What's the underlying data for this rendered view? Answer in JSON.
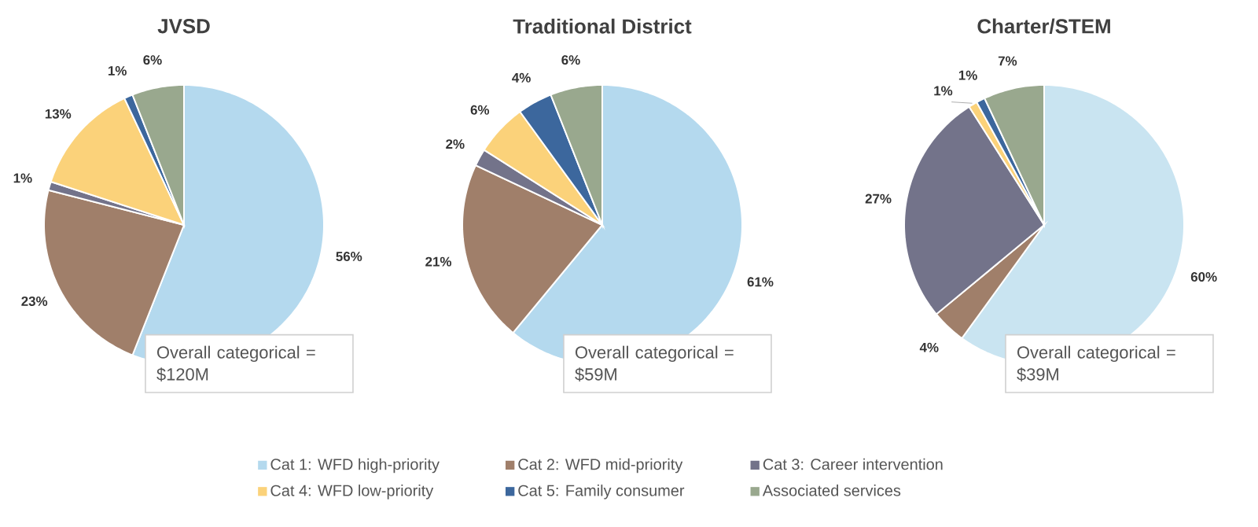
{
  "chart_data": [
    {
      "type": "pie",
      "title": "JVSD",
      "categories": [
        null,
        null,
        null,
        null,
        null,
        null
      ],
      "values": [
        56,
        23,
        1,
        13,
        1,
        6
      ],
      "value_labels": [
        "56%",
        "23%",
        "1%",
        "13%",
        "1%",
        "6%"
      ],
      "colors": [
        "#b4d9ee",
        "#a07f6a",
        "#73738a",
        "#fbd27a",
        "#3c679d",
        "#99a88e"
      ],
      "annotations": [
        "Overall categorical = $120M"
      ]
    },
    {
      "type": "pie",
      "title": "Traditional District",
      "categories": [
        "Cat 1: WFD high-priority",
        "Cat 2: WFD mid-priority",
        "Cat 3: Career intervention",
        "Cat 4: WFD low-priority",
        "Cat 5: Family consumer",
        "Associated services"
      ],
      "values": [
        61,
        21,
        2,
        6,
        4,
        6
      ],
      "value_labels": [
        "61%",
        "21%",
        "2%",
        "6%",
        "4%",
        "6%"
      ],
      "colors": [
        "#b4d9ee",
        "#a07f6a",
        "#73738a",
        "#fbd27a",
        "#3c679d",
        "#99a88e"
      ],
      "annotations": [
        "Overall categorical = $59M"
      ],
      "legend": "bottom"
    },
    {
      "type": "pie",
      "title": "Charter/STEM",
      "categories": [
        null,
        null,
        null,
        null,
        null,
        null
      ],
      "values": [
        60,
        4,
        27,
        1,
        1,
        7
      ],
      "value_labels": [
        "60%",
        "4%",
        "27%",
        "1%",
        "1%",
        "7%"
      ],
      "colors": [
        "#c9e4f1",
        "#a07f6a",
        "#73738a",
        "#fbd27a",
        "#3c679d",
        "#99a88e"
      ],
      "annotations": [
        "Overall categorical = $39M"
      ]
    }
  ]
}
